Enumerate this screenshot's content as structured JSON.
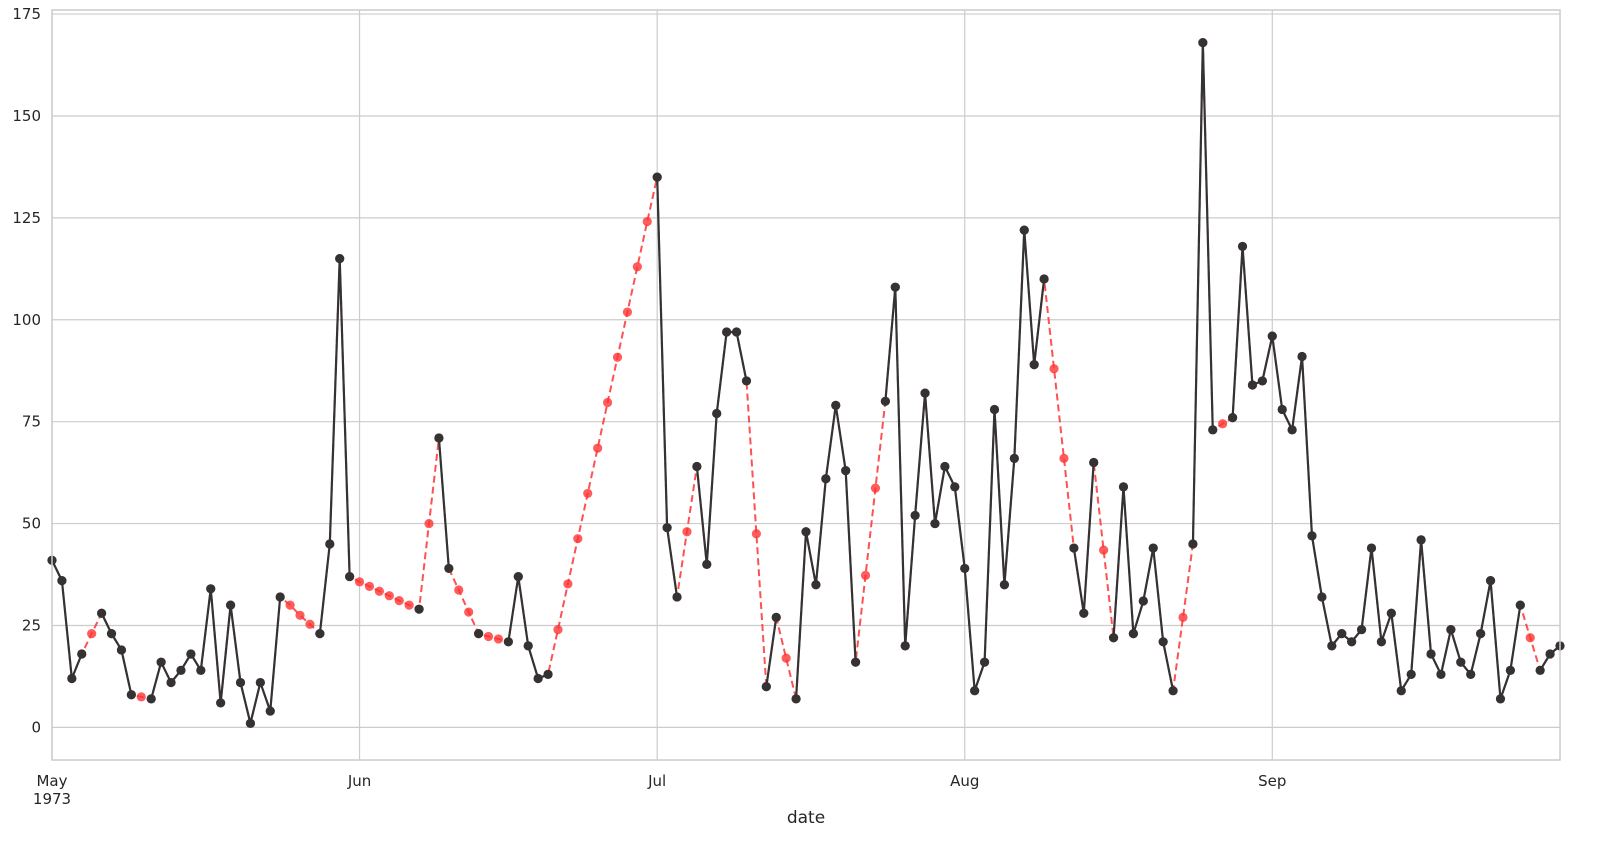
{
  "chart_data": {
    "type": "line",
    "xlabel": "date",
    "ylabel": "",
    "ylim": [
      -8,
      176
    ],
    "yticks": [
      0,
      25,
      50,
      75,
      100,
      125,
      150,
      175
    ],
    "xlim": [
      "1973-05-01",
      "1973-09-30"
    ],
    "xticks": [
      {
        "date": "1973-05-01",
        "label": "May",
        "sublabel": "1973"
      },
      {
        "date": "1973-06-01",
        "label": "Jun",
        "sublabel": ""
      },
      {
        "date": "1973-07-01",
        "label": "Jul",
        "sublabel": ""
      },
      {
        "date": "1973-08-01",
        "label": "Aug",
        "sublabel": ""
      },
      {
        "date": "1973-09-01",
        "label": "Sep",
        "sublabel": ""
      }
    ],
    "grid": true,
    "start_date": "1973-05-01",
    "series": [
      {
        "role": "interpolated",
        "color": "#ff3333",
        "line_style": "dashed",
        "values": [
          41,
          36,
          12,
          18,
          23,
          28,
          23,
          19,
          8,
          7.5,
          7,
          16,
          11,
          14,
          18,
          14,
          34,
          6,
          30,
          11,
          1,
          11,
          4,
          32,
          30,
          27.5,
          25.3,
          23,
          45,
          115,
          37,
          35.7,
          34.6,
          33.4,
          32.3,
          31.1,
          30,
          29,
          50,
          71,
          39,
          33.7,
          28.3,
          23,
          22.3,
          21.7,
          21,
          37,
          20,
          12,
          13,
          24,
          35.2,
          46.3,
          57.4,
          68.5,
          79.7,
          90.8,
          101.9,
          113,
          124.1,
          135,
          49,
          32,
          48,
          64,
          40,
          77,
          97,
          97,
          85,
          47.5,
          10,
          27,
          17,
          7,
          48,
          35,
          61,
          79,
          63,
          16,
          37.3,
          58.7,
          80,
          108,
          20,
          52,
          82,
          50,
          64,
          59,
          39,
          9,
          16,
          78,
          35,
          66,
          122,
          89,
          110,
          88,
          66,
          44,
          28,
          65,
          43.5,
          22,
          59,
          23,
          31,
          44,
          21,
          9,
          27,
          45,
          168,
          73,
          74.5,
          76,
          118,
          84,
          85,
          96,
          78,
          73,
          91,
          47,
          32,
          20,
          23,
          21,
          24,
          44,
          21,
          28,
          9,
          13,
          46,
          18,
          13,
          24,
          16,
          13,
          23,
          36,
          7,
          14,
          30,
          22,
          14,
          18,
          20
        ]
      },
      {
        "role": "observed",
        "color": "#333333",
        "line_style": "solid",
        "values": [
          41,
          36,
          12,
          18,
          null,
          28,
          23,
          19,
          8,
          null,
          7,
          16,
          11,
          14,
          18,
          14,
          34,
          6,
          30,
          11,
          1,
          11,
          4,
          32,
          null,
          null,
          null,
          23,
          45,
          115,
          37,
          null,
          null,
          null,
          null,
          null,
          null,
          29,
          null,
          71,
          39,
          null,
          null,
          23,
          null,
          null,
          21,
          37,
          20,
          12,
          13,
          null,
          null,
          null,
          null,
          null,
          null,
          null,
          null,
          null,
          null,
          135,
          49,
          32,
          null,
          64,
          40,
          77,
          97,
          97,
          85,
          null,
          10,
          27,
          null,
          7,
          48,
          35,
          61,
          79,
          63,
          16,
          null,
          null,
          80,
          108,
          20,
          52,
          82,
          50,
          64,
          59,
          39,
          9,
          16,
          78,
          35,
          66,
          122,
          89,
          110,
          null,
          null,
          44,
          28,
          65,
          null,
          22,
          59,
          23,
          31,
          44,
          21,
          9,
          null,
          45,
          168,
          73,
          null,
          76,
          118,
          84,
          85,
          96,
          78,
          73,
          91,
          47,
          32,
          20,
          23,
          21,
          24,
          44,
          21,
          28,
          9,
          13,
          46,
          18,
          13,
          24,
          16,
          13,
          23,
          36,
          7,
          14,
          30,
          null,
          14,
          18,
          20
        ]
      }
    ]
  }
}
